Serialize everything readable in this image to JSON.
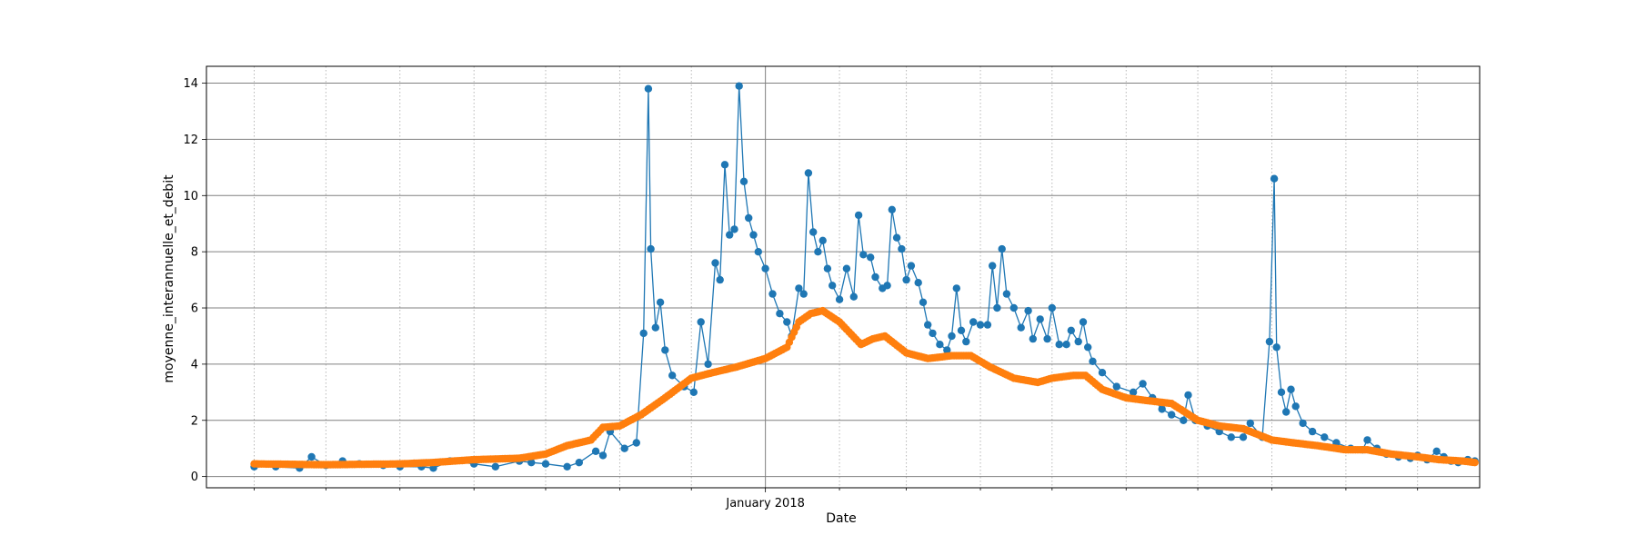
{
  "chart_data": {
    "type": "line",
    "title": "",
    "xlabel": "Date",
    "ylabel": "moyenne_interannuelle_et_debit",
    "xlim": [
      "2017-05-12",
      "2018-10-27"
    ],
    "ylim": [
      -0.4,
      14.6
    ],
    "y_ticks": [
      0,
      2,
      4,
      6,
      8,
      10,
      12,
      14
    ],
    "x_major_ticks": [
      {
        "date": "2018-01-01",
        "label": "January 2018"
      }
    ],
    "x_minor_ticks": [
      "2017-06-01",
      "2017-07-01",
      "2017-08-01",
      "2017-09-01",
      "2017-10-01",
      "2017-11-01",
      "2017-12-01",
      "2018-02-01",
      "2018-03-01",
      "2018-04-01",
      "2018-05-01",
      "2018-06-01",
      "2018-07-01",
      "2018-08-01",
      "2018-09-01",
      "2018-10-01"
    ],
    "grid": {
      "major": "solid gray",
      "minor": "dotted gray"
    },
    "series": [
      {
        "color": "#1f77b4",
        "style": "line-with-markers",
        "points": [
          [
            "2017-06-01",
            0.35
          ],
          [
            "2017-06-10",
            0.35
          ],
          [
            "2017-06-20",
            0.3
          ],
          [
            "2017-06-25",
            0.7
          ],
          [
            "2017-07-01",
            0.4
          ],
          [
            "2017-07-08",
            0.55
          ],
          [
            "2017-07-15",
            0.45
          ],
          [
            "2017-07-25",
            0.4
          ],
          [
            "2017-08-01",
            0.35
          ],
          [
            "2017-08-10",
            0.35
          ],
          [
            "2017-08-15",
            0.3
          ],
          [
            "2017-08-22",
            0.55
          ],
          [
            "2017-09-01",
            0.45
          ],
          [
            "2017-09-10",
            0.35
          ],
          [
            "2017-09-20",
            0.55
          ],
          [
            "2017-09-25",
            0.5
          ],
          [
            "2017-10-01",
            0.45
          ],
          [
            "2017-10-10",
            0.35
          ],
          [
            "2017-10-15",
            0.5
          ],
          [
            "2017-10-22",
            0.9
          ],
          [
            "2017-10-25",
            0.75
          ],
          [
            "2017-10-28",
            1.6
          ],
          [
            "2017-11-03",
            1.0
          ],
          [
            "2017-11-08",
            1.2
          ],
          [
            "2017-11-11",
            5.1
          ],
          [
            "2017-11-13",
            13.8
          ],
          [
            "2017-11-14",
            8.1
          ],
          [
            "2017-11-16",
            5.3
          ],
          [
            "2017-11-18",
            6.2
          ],
          [
            "2017-11-20",
            4.5
          ],
          [
            "2017-11-23",
            3.6
          ],
          [
            "2017-11-28",
            3.2
          ],
          [
            "2017-12-02",
            3.0
          ],
          [
            "2017-12-05",
            5.5
          ],
          [
            "2017-12-08",
            4.0
          ],
          [
            "2017-12-11",
            7.6
          ],
          [
            "2017-12-13",
            7.0
          ],
          [
            "2017-12-15",
            11.1
          ],
          [
            "2017-12-17",
            8.6
          ],
          [
            "2017-12-19",
            8.8
          ],
          [
            "2017-12-21",
            13.9
          ],
          [
            "2017-12-23",
            10.5
          ],
          [
            "2017-12-25",
            9.2
          ],
          [
            "2017-12-27",
            8.6
          ],
          [
            "2017-12-29",
            8.0
          ],
          [
            "2018-01-01",
            7.4
          ],
          [
            "2018-01-04",
            6.5
          ],
          [
            "2018-01-07",
            5.8
          ],
          [
            "2018-01-10",
            5.5
          ],
          [
            "2018-01-12",
            5.0
          ],
          [
            "2018-01-15",
            6.7
          ],
          [
            "2018-01-17",
            6.5
          ],
          [
            "2018-01-19",
            10.8
          ],
          [
            "2018-01-21",
            8.7
          ],
          [
            "2018-01-23",
            8.0
          ],
          [
            "2018-01-25",
            8.4
          ],
          [
            "2018-01-27",
            7.4
          ],
          [
            "2018-01-29",
            6.8
          ],
          [
            "2018-02-01",
            6.3
          ],
          [
            "2018-02-04",
            7.4
          ],
          [
            "2018-02-07",
            6.4
          ],
          [
            "2018-02-09",
            9.3
          ],
          [
            "2018-02-11",
            7.9
          ],
          [
            "2018-02-14",
            7.8
          ],
          [
            "2018-02-16",
            7.1
          ],
          [
            "2018-02-19",
            6.7
          ],
          [
            "2018-02-21",
            6.8
          ],
          [
            "2018-02-23",
            9.5
          ],
          [
            "2018-02-25",
            8.5
          ],
          [
            "2018-02-27",
            8.1
          ],
          [
            "2018-03-01",
            7.0
          ],
          [
            "2018-03-03",
            7.5
          ],
          [
            "2018-03-06",
            6.9
          ],
          [
            "2018-03-08",
            6.2
          ],
          [
            "2018-03-10",
            5.4
          ],
          [
            "2018-03-12",
            5.1
          ],
          [
            "2018-03-15",
            4.7
          ],
          [
            "2018-03-18",
            4.5
          ],
          [
            "2018-03-20",
            5.0
          ],
          [
            "2018-03-22",
            6.7
          ],
          [
            "2018-03-24",
            5.2
          ],
          [
            "2018-03-26",
            4.8
          ],
          [
            "2018-03-29",
            5.5
          ],
          [
            "2018-04-01",
            5.4
          ],
          [
            "2018-04-04",
            5.4
          ],
          [
            "2018-04-06",
            7.5
          ],
          [
            "2018-04-08",
            6.0
          ],
          [
            "2018-04-10",
            8.1
          ],
          [
            "2018-04-12",
            6.5
          ],
          [
            "2018-04-15",
            6.0
          ],
          [
            "2018-04-18",
            5.3
          ],
          [
            "2018-04-21",
            5.9
          ],
          [
            "2018-04-23",
            4.9
          ],
          [
            "2018-04-26",
            5.6
          ],
          [
            "2018-04-29",
            4.9
          ],
          [
            "2018-05-01",
            6.0
          ],
          [
            "2018-05-04",
            4.7
          ],
          [
            "2018-05-07",
            4.7
          ],
          [
            "2018-05-09",
            5.2
          ],
          [
            "2018-05-12",
            4.8
          ],
          [
            "2018-05-14",
            5.5
          ],
          [
            "2018-05-16",
            4.6
          ],
          [
            "2018-05-18",
            4.1
          ],
          [
            "2018-05-22",
            3.7
          ],
          [
            "2018-05-28",
            3.2
          ],
          [
            "2018-06-04",
            3.0
          ],
          [
            "2018-06-08",
            3.3
          ],
          [
            "2018-06-12",
            2.8
          ],
          [
            "2018-06-16",
            2.4
          ],
          [
            "2018-06-20",
            2.2
          ],
          [
            "2018-06-25",
            2.0
          ],
          [
            "2018-06-27",
            2.9
          ],
          [
            "2018-06-30",
            2.0
          ],
          [
            "2018-07-05",
            1.8
          ],
          [
            "2018-07-10",
            1.6
          ],
          [
            "2018-07-15",
            1.4
          ],
          [
            "2018-07-20",
            1.4
          ],
          [
            "2018-07-23",
            1.9
          ],
          [
            "2018-07-28",
            1.4
          ],
          [
            "2018-07-31",
            4.8
          ],
          [
            "2018-08-02",
            10.6
          ],
          [
            "2018-08-03",
            4.6
          ],
          [
            "2018-08-05",
            3.0
          ],
          [
            "2018-08-07",
            2.3
          ],
          [
            "2018-08-09",
            3.1
          ],
          [
            "2018-08-11",
            2.5
          ],
          [
            "2018-08-14",
            1.9
          ],
          [
            "2018-08-18",
            1.6
          ],
          [
            "2018-08-23",
            1.4
          ],
          [
            "2018-08-28",
            1.2
          ],
          [
            "2018-09-03",
            1.0
          ],
          [
            "2018-09-08",
            0.95
          ],
          [
            "2018-09-10",
            1.3
          ],
          [
            "2018-09-14",
            1.0
          ],
          [
            "2018-09-18",
            0.8
          ],
          [
            "2018-09-23",
            0.7
          ],
          [
            "2018-09-28",
            0.65
          ],
          [
            "2018-10-01",
            0.75
          ],
          [
            "2018-10-05",
            0.6
          ],
          [
            "2018-10-09",
            0.9
          ],
          [
            "2018-10-12",
            0.7
          ],
          [
            "2018-10-15",
            0.55
          ],
          [
            "2018-10-18",
            0.5
          ],
          [
            "2018-10-22",
            0.6
          ],
          [
            "2018-10-25",
            0.55
          ]
        ]
      },
      {
        "color": "#ff7f0e",
        "style": "thick-line-with-markers",
        "points": [
          [
            "2017-06-01",
            0.45
          ],
          [
            "2017-07-01",
            0.42
          ],
          [
            "2017-08-01",
            0.45
          ],
          [
            "2017-08-15",
            0.5
          ],
          [
            "2017-09-01",
            0.6
          ],
          [
            "2017-09-20",
            0.65
          ],
          [
            "2017-10-01",
            0.8
          ],
          [
            "2017-10-10",
            1.1
          ],
          [
            "2017-10-20",
            1.3
          ],
          [
            "2017-10-25",
            1.75
          ],
          [
            "2017-11-01",
            1.8
          ],
          [
            "2017-11-10",
            2.2
          ],
          [
            "2017-11-20",
            2.8
          ],
          [
            "2017-12-01",
            3.5
          ],
          [
            "2017-12-10",
            3.7
          ],
          [
            "2017-12-20",
            3.9
          ],
          [
            "2018-01-01",
            4.2
          ],
          [
            "2018-01-10",
            4.6
          ],
          [
            "2018-01-15",
            5.5
          ],
          [
            "2018-01-20",
            5.8
          ],
          [
            "2018-01-25",
            5.9
          ],
          [
            "2018-02-01",
            5.5
          ],
          [
            "2018-02-10",
            4.7
          ],
          [
            "2018-02-15",
            4.9
          ],
          [
            "2018-02-20",
            5.0
          ],
          [
            "2018-03-01",
            4.4
          ],
          [
            "2018-03-10",
            4.2
          ],
          [
            "2018-03-20",
            4.3
          ],
          [
            "2018-03-28",
            4.3
          ],
          [
            "2018-04-05",
            3.9
          ],
          [
            "2018-04-15",
            3.5
          ],
          [
            "2018-04-25",
            3.35
          ],
          [
            "2018-05-01",
            3.5
          ],
          [
            "2018-05-10",
            3.6
          ],
          [
            "2018-05-15",
            3.6
          ],
          [
            "2018-05-22",
            3.1
          ],
          [
            "2018-06-01",
            2.8
          ],
          [
            "2018-06-10",
            2.7
          ],
          [
            "2018-06-20",
            2.6
          ],
          [
            "2018-07-01",
            2.0
          ],
          [
            "2018-07-10",
            1.8
          ],
          [
            "2018-07-20",
            1.7
          ],
          [
            "2018-08-01",
            1.3
          ],
          [
            "2018-08-10",
            1.2
          ],
          [
            "2018-08-20",
            1.1
          ],
          [
            "2018-09-01",
            0.95
          ],
          [
            "2018-09-10",
            0.95
          ],
          [
            "2018-09-20",
            0.8
          ],
          [
            "2018-10-01",
            0.7
          ],
          [
            "2018-10-10",
            0.6
          ],
          [
            "2018-10-20",
            0.55
          ],
          [
            "2018-10-25",
            0.5
          ]
        ]
      }
    ]
  }
}
